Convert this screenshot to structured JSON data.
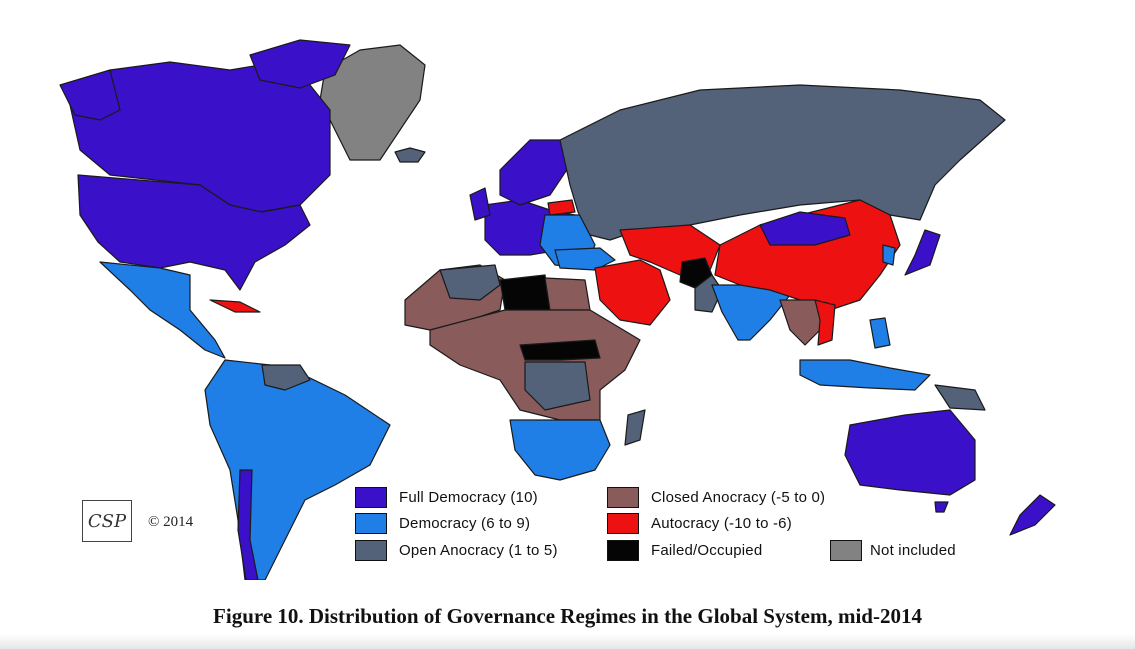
{
  "caption": "Figure 10. Distribution of Governance Regimes in the Global System, mid-2014",
  "logo": {
    "text": "CSP"
  },
  "copyright": "© 2014",
  "colors": {
    "full_democracy": "#3a10c8",
    "democracy": "#1f7fe6",
    "open_anocracy": "#536179",
    "closed_anocracy": "#8a5b5b",
    "autocracy": "#ee1111",
    "failed": "#050505",
    "not_included": "#828282"
  },
  "legend": [
    {
      "label": "Full Democracy (10)",
      "color": "#3a10c8"
    },
    {
      "label": "Democracy (6 to 9)",
      "color": "#1f7fe6"
    },
    {
      "label": "Open Anocracy (1 to 5)",
      "color": "#536179"
    },
    {
      "label": "Closed Anocracy (-5 to 0)",
      "color": "#8a5b5b"
    },
    {
      "label": "Autocracy (-10 to -6)",
      "color": "#ee1111"
    },
    {
      "label": "Failed/Occupied",
      "color": "#050505"
    },
    {
      "label": "Not included",
      "color": "#828282"
    }
  ]
}
